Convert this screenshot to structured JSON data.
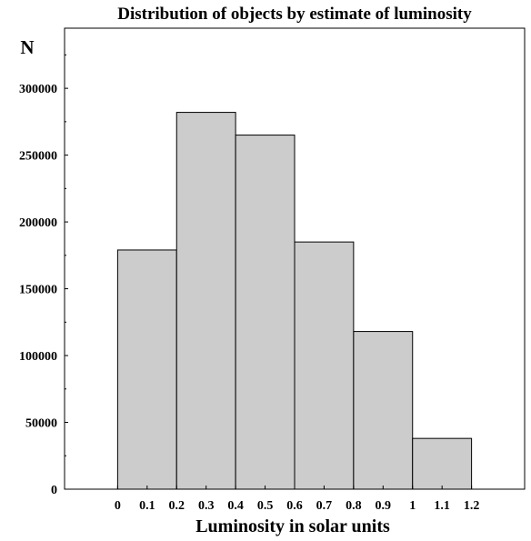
{
  "chart_data": {
    "type": "bar",
    "title": "Distribution of objects by estimate of luminosity",
    "ylabel": "N",
    "xlabel": "Luminosity in solar units",
    "bins": [
      [
        0,
        0.2
      ],
      [
        0.2,
        0.4
      ],
      [
        0.4,
        0.6
      ],
      [
        0.6,
        0.8
      ],
      [
        0.8,
        1.0
      ],
      [
        1.0,
        1.2
      ]
    ],
    "values": [
      179000,
      282000,
      265000,
      185000,
      118000,
      38000
    ],
    "xlim": [
      -0.18,
      1.38
    ],
    "ylim": [
      0,
      345000
    ],
    "x_tick_labels": [
      "0",
      "0.1",
      "0.2",
      "0.3",
      "0.4",
      "0.5",
      "0.6",
      "0.7",
      "0.8",
      "0.9",
      "1",
      "1.1",
      "1.2"
    ],
    "x_tick_values": [
      0,
      0.1,
      0.2,
      0.3,
      0.4,
      0.5,
      0.6,
      0.7,
      0.8,
      0.9,
      1.0,
      1.1,
      1.2
    ],
    "y_tick_labels": [
      "0",
      "50000",
      "100000",
      "150000",
      "200000",
      "250000",
      "300000"
    ],
    "y_tick_values": [
      0,
      50000,
      100000,
      150000,
      200000,
      250000,
      300000
    ],
    "bar_color": "#cccccc",
    "edge_color": "#000000",
    "grid": false
  }
}
